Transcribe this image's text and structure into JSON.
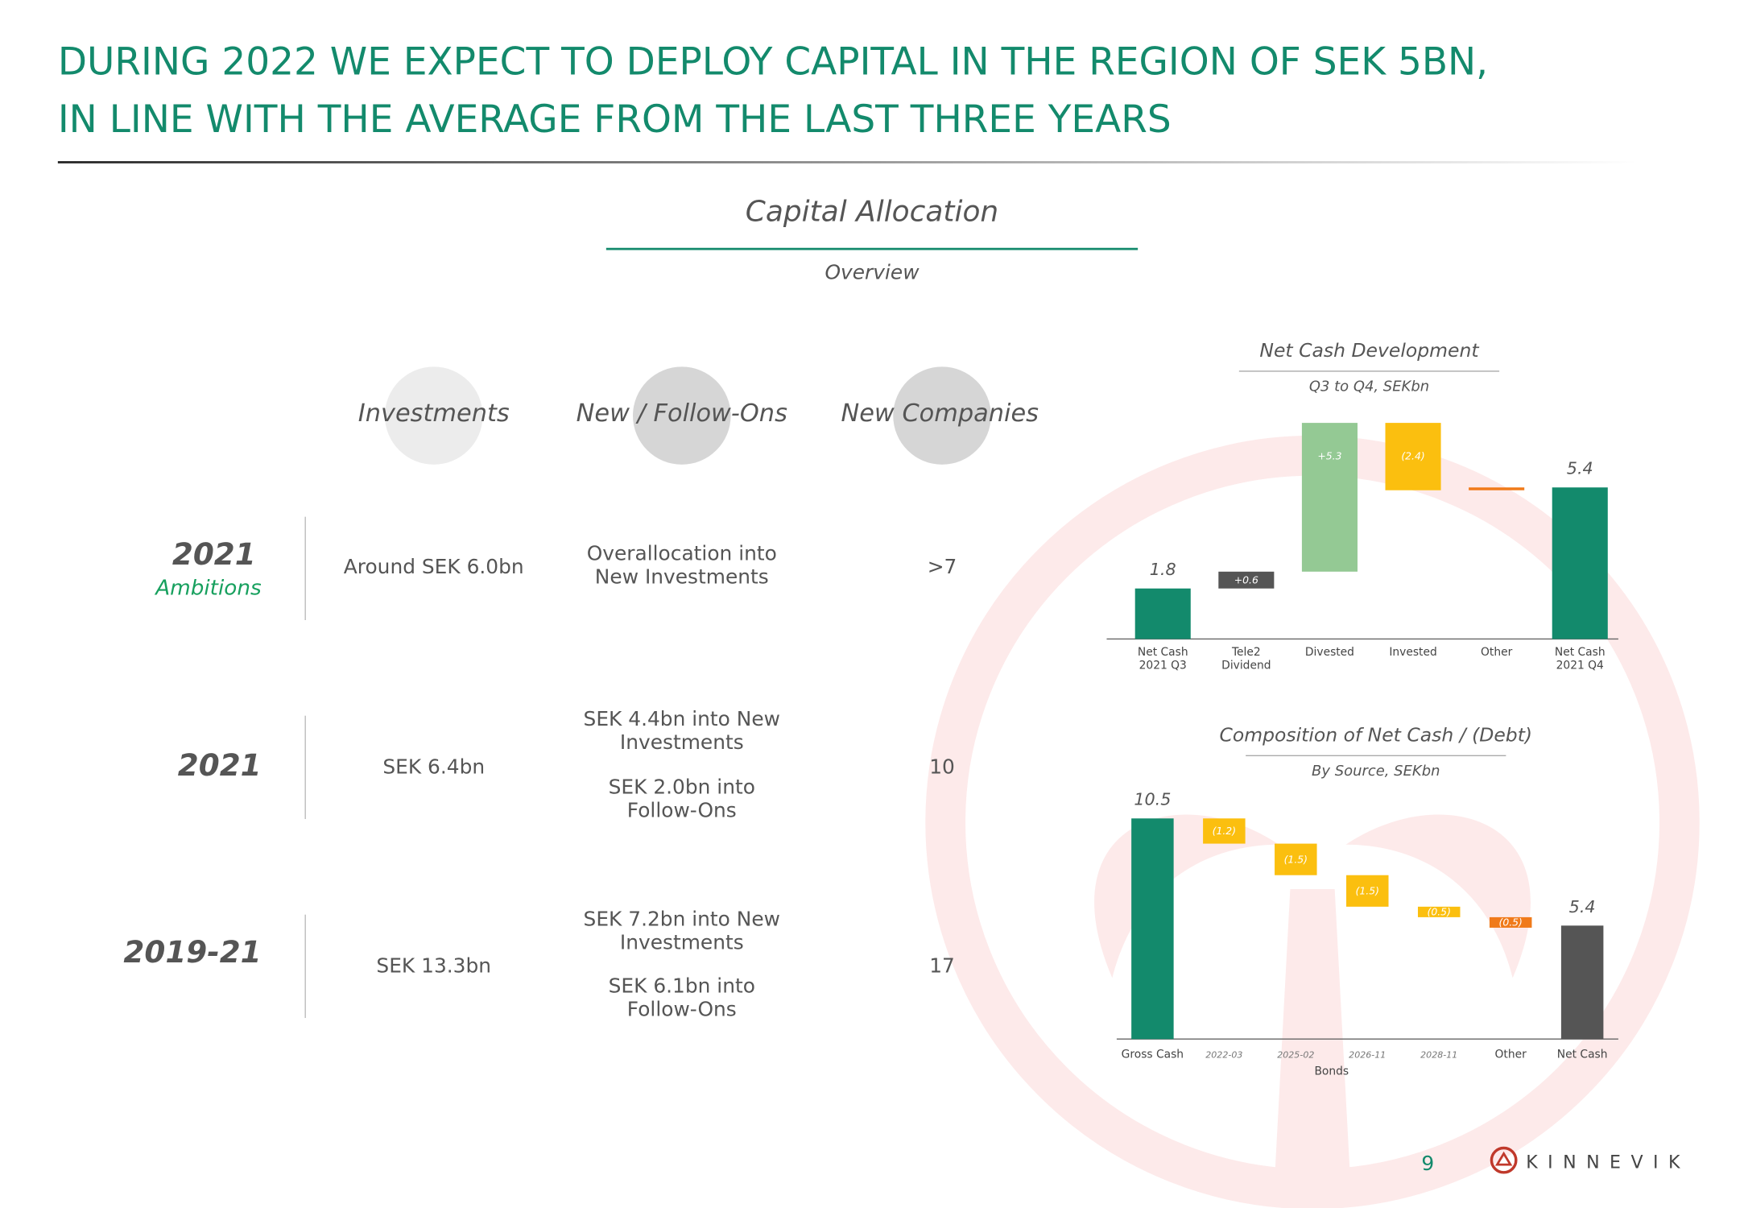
{
  "header": {
    "title_lines": [
      "DURING 2022 WE EXPECT TO DEPLOY CAPITAL IN THE REGION OF SEK 5BN,",
      "IN LINE WITH THE AVERAGE FROM THE LAST THREE YEARS"
    ]
  },
  "section": {
    "title": "Capital Allocation",
    "subtitle": "Overview"
  },
  "table": {
    "columns": [
      "Investments",
      "New / Follow-Ons",
      "New Companies"
    ],
    "rows": [
      {
        "period": "2021",
        "note": "Ambitions",
        "investments": "Around SEK 6.0bn",
        "new_follow_ons": [
          "Overallocation into New Investments"
        ],
        "new_companies": ">7"
      },
      {
        "period": "2021",
        "investments": "SEK 6.4bn",
        "new_follow_ons": [
          "SEK 4.4bn into New Investments",
          "SEK 2.0bn into Follow-Ons"
        ],
        "new_companies": "10"
      },
      {
        "period": "2019-21",
        "investments": "SEK 13.3bn",
        "new_follow_ons": [
          "SEK 7.2bn into New Investments",
          "SEK 6.1bn into Follow-Ons"
        ],
        "new_companies": "17"
      }
    ]
  },
  "chart_data": [
    {
      "type": "waterfall",
      "title": "Net Cash Development",
      "subtitle": "Q3 to Q4, SEKbn",
      "categories": [
        "Net Cash 2021 Q3",
        "Tele2 Dividend",
        "Divested",
        "Invested",
        "Other",
        "Net Cash 2021 Q4"
      ],
      "values": [
        1.8,
        0.6,
        5.3,
        -2.4,
        0.1,
        5.4
      ],
      "value_labels": [
        "1.8",
        "+0.6",
        "+5.3",
        "(2.4)",
        null,
        "5.4"
      ],
      "totals": [
        true,
        false,
        false,
        false,
        false,
        true
      ],
      "colors": [
        "#138a6c",
        "#555555",
        "#94c994",
        "#fbbf0f",
        "#f07a1a",
        "#138a6c"
      ],
      "ylim": [
        0,
        7.8
      ]
    },
    {
      "type": "waterfall",
      "title": "Composition of Net Cash / (Debt)",
      "subtitle": "By Source, SEKbn",
      "categories": [
        "Gross Cash",
        "2022-03",
        "2025-02",
        "2026-11",
        "2028-11",
        "Other",
        "Net Cash"
      ],
      "group_label": "Bonds",
      "values": [
        10.5,
        -1.2,
        -1.5,
        -1.5,
        -0.5,
        -0.5,
        5.4
      ],
      "value_labels": [
        "10.5",
        "(1.2)",
        "(1.5)",
        "(1.5)",
        "(0.5)",
        "(0.5)",
        "5.4"
      ],
      "totals": [
        true,
        false,
        false,
        false,
        false,
        false,
        true
      ],
      "colors": [
        "#138a6c",
        "#fbbf0f",
        "#fbbf0f",
        "#fbbf0f",
        "#fbbf0f",
        "#f07a1a",
        "#555555"
      ],
      "ylim": [
        0,
        11
      ]
    }
  ],
  "footer": {
    "page_number": "9",
    "logo": "KINNEVIK"
  }
}
